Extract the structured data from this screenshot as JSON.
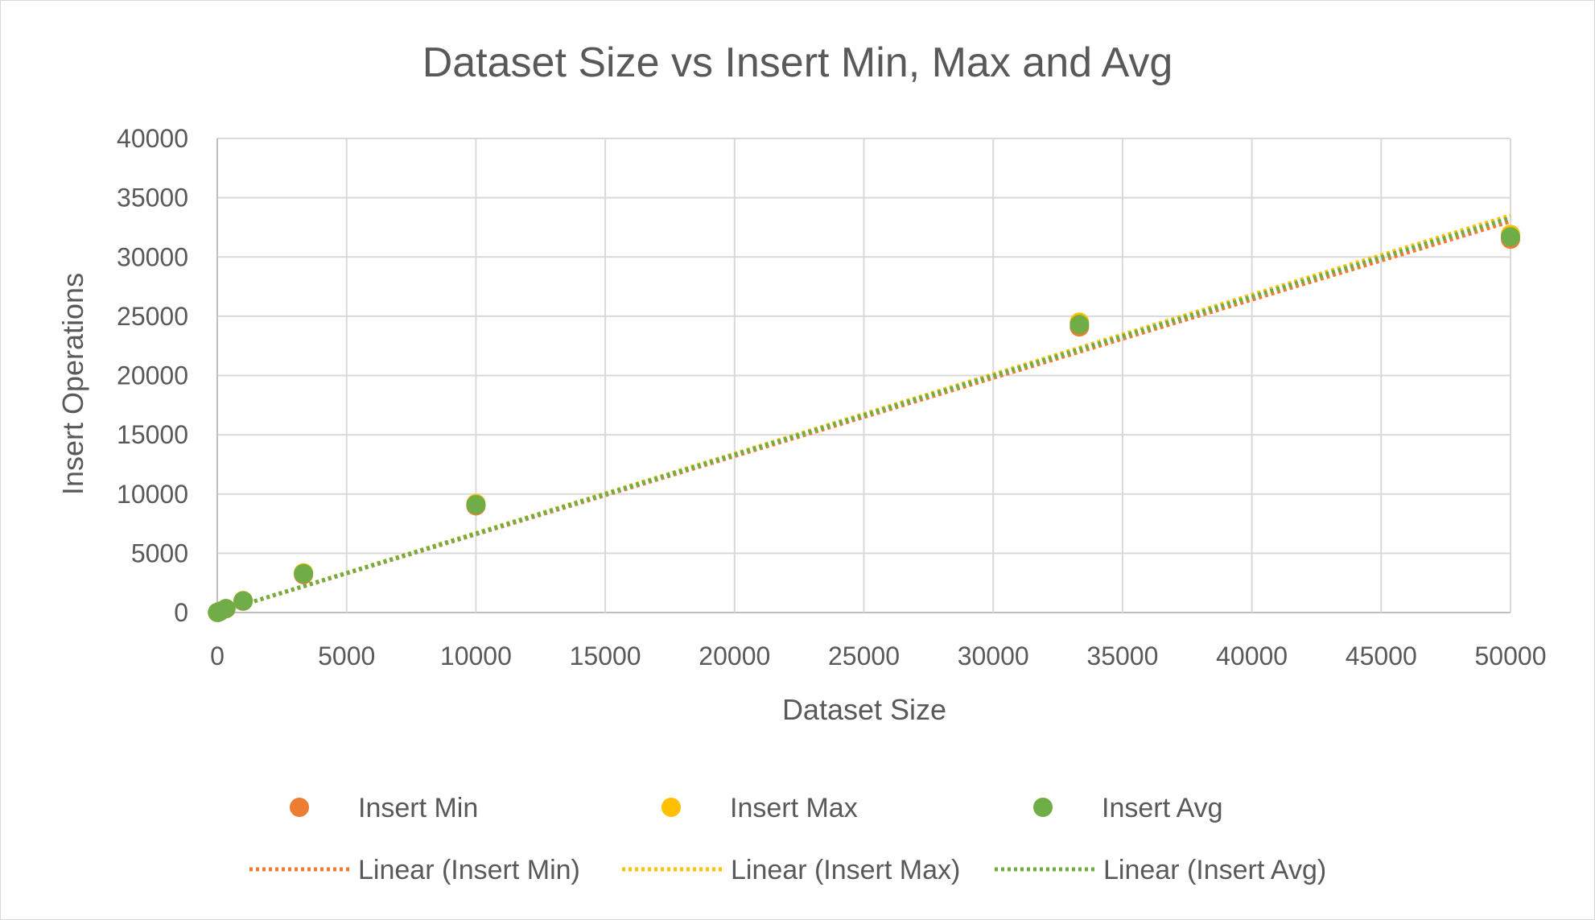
{
  "chart_data": {
    "type": "scatter",
    "title": "Dataset Size vs Insert Min, Max and Avg",
    "xlabel": "Dataset Size",
    "ylabel": "Insert Operations",
    "xlim": [
      0,
      50000
    ],
    "ylim": [
      0,
      40000
    ],
    "xticks": [
      "0",
      "5000",
      "10000",
      "15000",
      "20000",
      "25000",
      "30000",
      "35000",
      "40000",
      "45000",
      "50000"
    ],
    "yticks": [
      "0",
      "5000",
      "10000",
      "15000",
      "20000",
      "25000",
      "30000",
      "35000",
      "40000"
    ],
    "grid": true,
    "legend_position": "bottom",
    "series": [
      {
        "name": "Insert Min",
        "color": "#ED7D31",
        "x": [
          10,
          100,
          333,
          1000,
          3333,
          10000,
          33333,
          50000
        ],
        "y": [
          10,
          95,
          320,
          960,
          3200,
          9000,
          24100,
          31500
        ]
      },
      {
        "name": "Insert Max",
        "color": "#FFC000",
        "x": [
          10,
          100,
          333,
          1000,
          3333,
          10000,
          33333,
          50000
        ],
        "y": [
          10,
          100,
          335,
          1010,
          3350,
          9200,
          24500,
          31900
        ]
      },
      {
        "name": "Insert Avg",
        "color": "#70AD47",
        "x": [
          10,
          100,
          333,
          1000,
          3333,
          10000,
          33333,
          50000
        ],
        "y": [
          10,
          98,
          328,
          985,
          3280,
          9100,
          24300,
          31700
        ]
      }
    ],
    "trendlines": [
      {
        "name": "Linear (Insert Min)",
        "color": "#ED7D31",
        "x": [
          0,
          50000
        ],
        "y": [
          0,
          33000
        ]
      },
      {
        "name": "Linear (Insert Max)",
        "color": "#FFC000",
        "x": [
          0,
          50000
        ],
        "y": [
          0,
          33500
        ]
      },
      {
        "name": "Linear (Insert Avg)",
        "color": "#70AD47",
        "x": [
          0,
          50000
        ],
        "y": [
          0,
          33300
        ]
      }
    ]
  }
}
